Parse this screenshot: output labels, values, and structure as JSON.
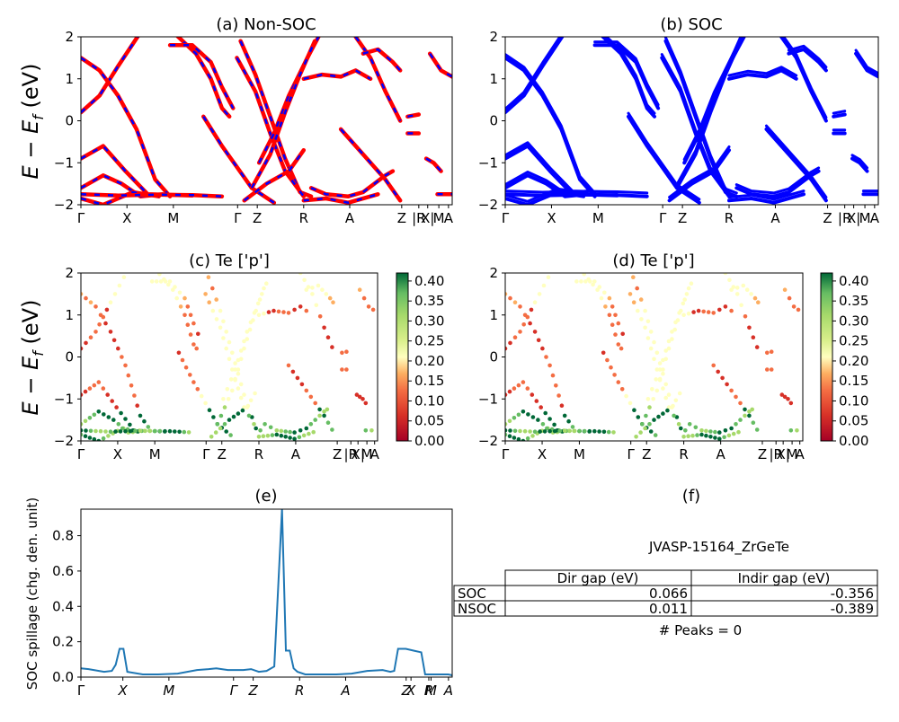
{
  "chart_data": [
    {
      "panel": "a",
      "type": "line",
      "title": "(a) Non-SOC",
      "ylabel": "E − E_f (eV)",
      "ylim": [
        -2,
        2
      ],
      "yticks": [
        "2",
        "1",
        "0",
        "−1",
        "−2"
      ],
      "xticks": [
        "Γ",
        "X",
        "M",
        "Γ",
        "Z",
        "R",
        "A",
        "Z",
        "|R",
        "X|",
        "M",
        "A"
      ],
      "series": [
        {
          "color": "#ff0000",
          "style": "solid"
        },
        {
          "color": "#0000ff",
          "style": "dashed"
        }
      ]
    },
    {
      "panel": "b",
      "type": "line",
      "title": "(b) SOC",
      "ylim": [
        -2,
        2
      ],
      "yticks": [
        "2",
        "1",
        "0",
        "−1",
        "−2"
      ],
      "xticks": [
        "Γ",
        "X",
        "M",
        "Γ",
        "Z",
        "R",
        "A",
        "Z",
        "|R",
        "X|",
        "M",
        "A"
      ],
      "series": [
        {
          "color": "#0000ff",
          "style": "solid"
        }
      ]
    },
    {
      "panel": "c",
      "type": "scatter",
      "title": "(c)  Te ['p']",
      "ylabel": "E − E_f (eV)",
      "ylim": [
        -2,
        2
      ],
      "yticks": [
        "2",
        "1",
        "0",
        "−1",
        "−2"
      ],
      "xticks": [
        "Γ",
        "X",
        "M",
        "Γ",
        "Z",
        "R",
        "A",
        "Z",
        "|R",
        "X|",
        "M",
        "A"
      ],
      "colorbar": {
        "ticks": [
          "0.40",
          "0.35",
          "0.30",
          "0.25",
          "0.20",
          "0.15",
          "0.10",
          "0.05",
          "0.00"
        ],
        "range": [
          0.0,
          0.42
        ],
        "colormap": "RdYlGn"
      }
    },
    {
      "panel": "d",
      "type": "scatter",
      "title": "(d) Te ['p']",
      "ylim": [
        -2,
        2
      ],
      "yticks": [
        "2",
        "1",
        "0",
        "−1",
        "−2"
      ],
      "xticks": [
        "Γ",
        "X",
        "M",
        "Γ",
        "Z",
        "R",
        "A",
        "Z",
        "|R",
        "X|",
        "M",
        "A"
      ],
      "colorbar": {
        "ticks": [
          "0.40",
          "0.35",
          "0.30",
          "0.25",
          "0.20",
          "0.15",
          "0.10",
          "0.05",
          "0.00"
        ],
        "range": [
          0.0,
          0.42
        ],
        "colormap": "RdYlGn"
      }
    },
    {
      "panel": "e",
      "type": "line",
      "title": "(e)",
      "ylabel": "SOC spillage (chg. den. unit)",
      "ylim": [
        0,
        0.95
      ],
      "yticks": [
        "0.8",
        "0.6",
        "0.4",
        "0.2",
        "0.0"
      ],
      "xticks": [
        "Γ",
        "X",
        "M",
        "Γ",
        "Z",
        "R",
        "A",
        "Z",
        "X",
        "R",
        "M",
        "A"
      ],
      "series": [
        {
          "color": "#1f77b4",
          "x": [
            0,
            2,
            6,
            8,
            9,
            10,
            11,
            12,
            16,
            20,
            25,
            30,
            33,
            35,
            38,
            42,
            44,
            46,
            48,
            50,
            52,
            53,
            54,
            55,
            56,
            58,
            62,
            66,
            70,
            74,
            78,
            80,
            81,
            82,
            84,
            86,
            88,
            89,
            90,
            92,
            94,
            95,
            96
          ],
          "y": [
            0.05,
            0.045,
            0.03,
            0.035,
            0.07,
            0.16,
            0.16,
            0.03,
            0.015,
            0.015,
            0.02,
            0.04,
            0.045,
            0.05,
            0.04,
            0.04,
            0.045,
            0.03,
            0.035,
            0.06,
            0.95,
            0.15,
            0.15,
            0.05,
            0.03,
            0.015,
            0.015,
            0.015,
            0.02,
            0.035,
            0.04,
            0.03,
            0.035,
            0.16,
            0.16,
            0.15,
            0.14,
            0.015,
            0.015,
            0.015,
            0.015,
            0.015,
            0.01
          ]
        }
      ]
    }
  ],
  "panel_f": {
    "title": "(f)",
    "name": "JVASP-15164_ZrGeTe",
    "table": {
      "headers": [
        "",
        "Dir gap (eV)",
        "Indir gap (eV)"
      ],
      "rows": [
        {
          "label": "SOC",
          "dir": "0.066",
          "indir": "-0.356"
        },
        {
          "label": "NSOC",
          "dir": "0.011",
          "indir": "-0.389"
        }
      ]
    },
    "peaks": "# Peaks = 0"
  }
}
